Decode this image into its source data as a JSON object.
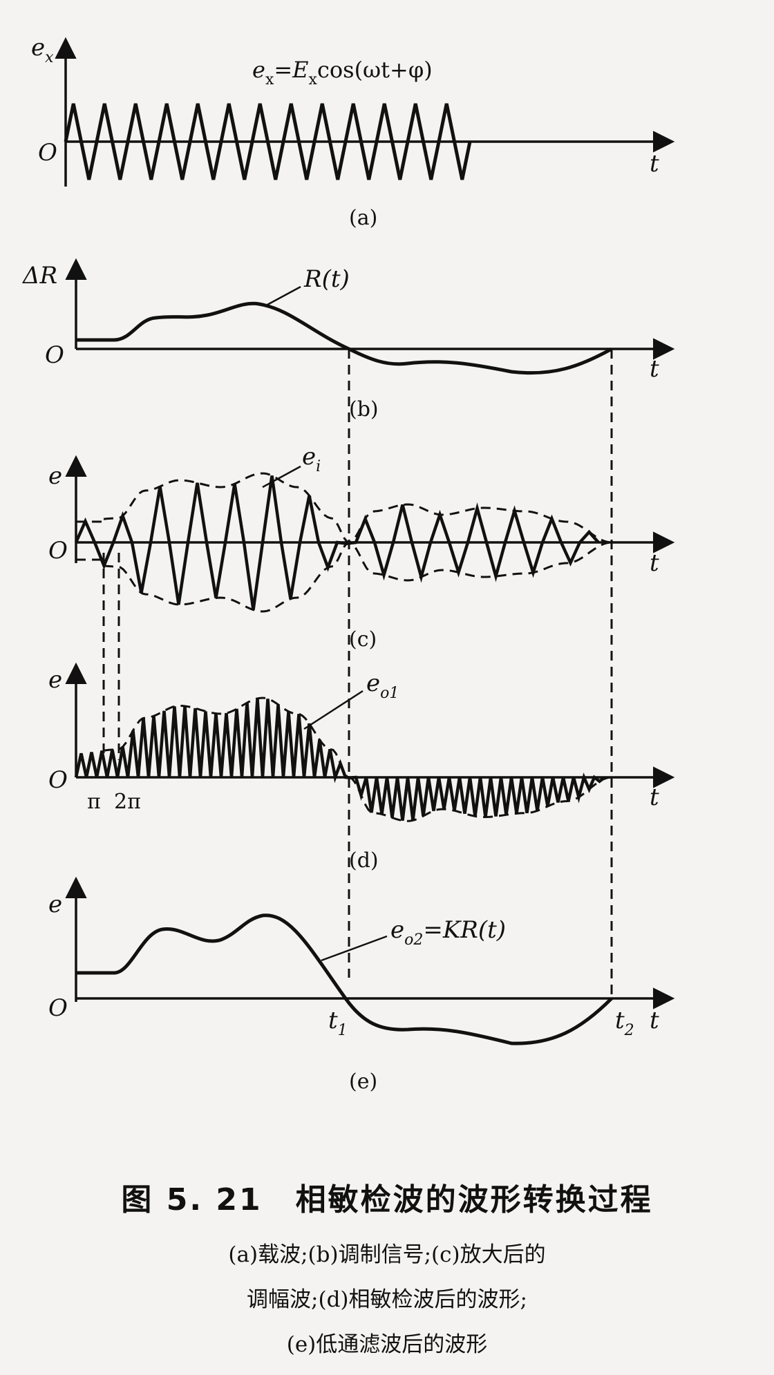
{
  "figure": {
    "panels": [
      {
        "label": "(a)",
        "y_axis": "e",
        "y_sub": "x",
        "origin": "O",
        "x_axis": "t",
        "formula": "e",
        "formula_sub": "x",
        "formula_rest": "=E",
        "formula_sub2": "x",
        "formula_tail": "cos(ωt+φ)"
      },
      {
        "label": "(b)",
        "y_axis": "ΔR",
        "origin": "O",
        "x_axis": "t",
        "curve_label": "R(t)"
      },
      {
        "label": "(c)",
        "y_axis": "e",
        "origin": "O",
        "x_axis": "t",
        "curve_label": "e",
        "curve_sub": "i"
      },
      {
        "label": "(d)",
        "y_axis": "e",
        "origin": "O",
        "x_axis": "t",
        "curve_label": "e",
        "curve_sub": "o1",
        "tick_pi": "π",
        "tick_2pi": "2π"
      },
      {
        "label": "(e)",
        "y_axis": "e",
        "origin": "O",
        "x_axis": "t",
        "curve_label": "e",
        "curve_sub": "o2",
        "curve_rest": "=KR(t)",
        "t1": "t",
        "t1_sub": "1",
        "t2": "t",
        "t2_sub": "2"
      }
    ]
  },
  "caption": {
    "number": "图 5. 21",
    "title": "相敏检波的波形转换过程",
    "line1": "(a)载波;(b)调制信号;(c)放大后的",
    "line2": "调幅波;(d)相敏检波后的波形;",
    "line3": "(e)低通滤波后的波形"
  },
  "colors": {
    "ink": "#111111",
    "paper": "#f4f3f1"
  }
}
